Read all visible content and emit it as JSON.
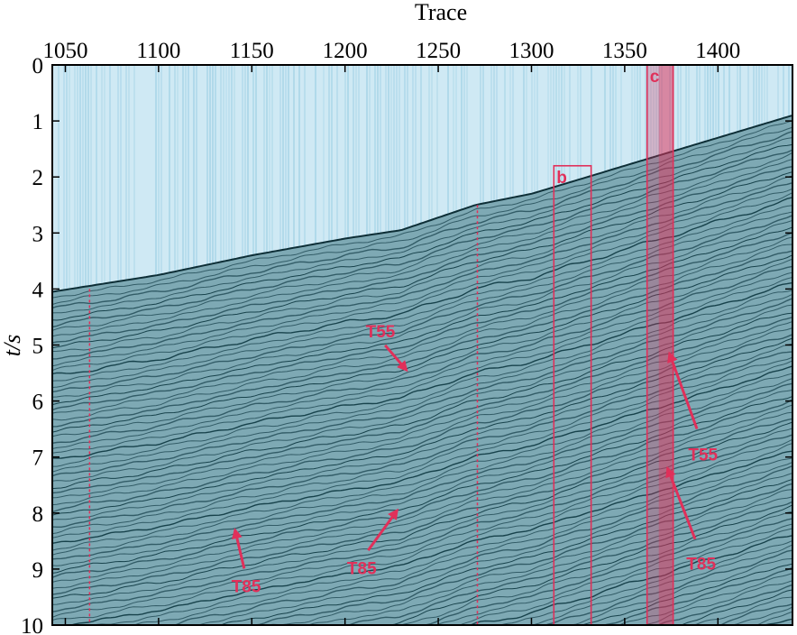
{
  "chart_data": {
    "type": "heatmap",
    "description_kind": "seismic-section",
    "xlabel": "Trace",
    "ylabel": "t/s",
    "xlim": [
      1043,
      1440
    ],
    "ylim": [
      0,
      10
    ],
    "y_inverted": true,
    "x_axis_position": "top",
    "x_ticks": [
      1050,
      1100,
      1150,
      1200,
      1250,
      1300,
      1350,
      1400
    ],
    "y_ticks": [
      0,
      1,
      2,
      3,
      4,
      5,
      6,
      7,
      8,
      9,
      10
    ],
    "water_bottom": {
      "trace": [
        1043,
        1100,
        1150,
        1200,
        1230,
        1270,
        1300,
        1320,
        1350,
        1380,
        1410,
        1440
      ],
      "t": [
        4.05,
        3.75,
        3.4,
        3.1,
        2.95,
        2.5,
        2.3,
        2.1,
        1.8,
        1.5,
        1.2,
        0.9
      ]
    },
    "colors": {
      "water": "#cfe9f4",
      "water_streak": "#7fc0da",
      "sediment": "#7ea9b4",
      "reflector": "#123c46",
      "annotation": "#e0305a"
    },
    "markers": [
      {
        "label": "",
        "trace_min": 1063,
        "trace_max": 1063,
        "t_min": 4.0,
        "t_max": 10,
        "style": "dashed-line"
      },
      {
        "label": "",
        "trace_min": 1271,
        "trace_max": 1271,
        "t_min": 2.5,
        "t_max": 10,
        "style": "dashed-line"
      },
      {
        "label": "b",
        "trace_min": 1312,
        "trace_max": 1332,
        "t_min": 1.8,
        "t_max": 10,
        "style": "outline-box"
      },
      {
        "label": "c",
        "trace_min": 1362,
        "trace_max": 1376,
        "t_min": 0,
        "t_max": 10,
        "style": "filled-box"
      }
    ],
    "annotations": [
      {
        "text": "T55",
        "label_trace": 1219,
        "label_t": 4.75,
        "arrow_trace": 1233,
        "arrow_t": 5.45
      },
      {
        "text": "T55",
        "label_trace": 1392,
        "label_t": 6.95,
        "arrow_trace": 1374,
        "arrow_t": 5.15
      },
      {
        "text": "T85",
        "label_trace": 1147,
        "label_t": 9.3,
        "arrow_trace": 1141,
        "arrow_t": 8.3
      },
      {
        "text": "T85",
        "label_trace": 1209,
        "label_t": 8.98,
        "arrow_trace": 1228,
        "arrow_t": 7.95
      },
      {
        "text": "T85",
        "label_trace": 1391,
        "label_t": 8.9,
        "arrow_trace": 1373,
        "arrow_t": 7.2
      }
    ]
  }
}
